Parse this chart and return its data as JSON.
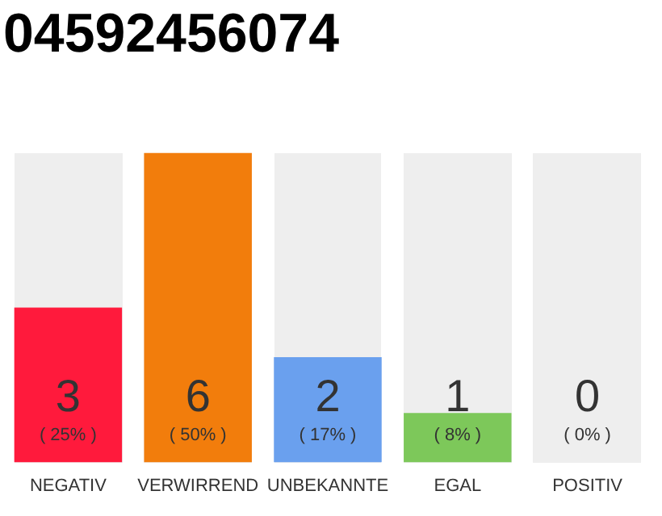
{
  "chart_data": {
    "type": "bar",
    "title": "04592456074",
    "categories": [
      "NEGATIV",
      "VERWIRREND",
      "UNBEKANNTE",
      "EGAL",
      "POSITIV"
    ],
    "values": [
      25,
      50,
      17,
      8,
      0
    ],
    "value_labels": [
      "( 25% )",
      "( 50% )",
      "( 17% )",
      "( 8% )",
      "( 0% )"
    ],
    "colors": [
      "#ff1a3c",
      "#f27d0c",
      "#6aa0ee",
      "#7dc85a",
      "#d0d0d0"
    ],
    "annotations": [
      "3",
      "6",
      "2",
      "1",
      "0"
    ],
    "grid": false,
    "legend": false
  }
}
